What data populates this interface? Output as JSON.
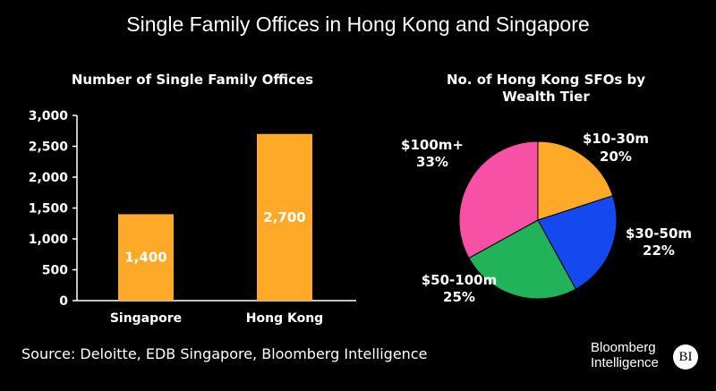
{
  "title": "Single Family Offices in Hong Kong and Singapore",
  "source": "Source: Deloitte, EDB Singapore, Bloomberg Intelligence",
  "logo": {
    "line1": "Bloomberg",
    "line2": "Intelligence",
    "badge": "BI"
  },
  "colors": {
    "bar": "#FFA928",
    "background": "#000000",
    "text": "#FFFFFF"
  },
  "chart_data": [
    {
      "type": "bar",
      "title": "Number of Single Family Offices",
      "categories": [
        "Singapore",
        "Hong Kong"
      ],
      "values": [
        1400,
        2700
      ],
      "value_labels": [
        "1,400",
        "2,700"
      ],
      "ylim": [
        0,
        3000
      ],
      "yticks": [
        0,
        500,
        1000,
        1500,
        2000,
        2500,
        3000
      ],
      "ytick_labels": [
        "0",
        "500",
        "1,000",
        "1,500",
        "2,000",
        "2,500",
        "3,000"
      ],
      "grid": false,
      "xlabel": "",
      "ylabel": ""
    },
    {
      "type": "pie",
      "title_lines": [
        "No. of Hong Kong SFOs by",
        "Wealth Tier"
      ],
      "slices": [
        {
          "label": "$10-30m",
          "value": 20,
          "value_label": "20%",
          "color": "#FFA928"
        },
        {
          "label": "$30-50m",
          "value": 22,
          "value_label": "22%",
          "color": "#1549F0"
        },
        {
          "label": "$50-100m",
          "value": 25,
          "value_label": "25%",
          "color": "#22B35A"
        },
        {
          "label": "$100m+",
          "value": 33,
          "value_label": "33%",
          "color": "#F751A6"
        }
      ]
    }
  ]
}
